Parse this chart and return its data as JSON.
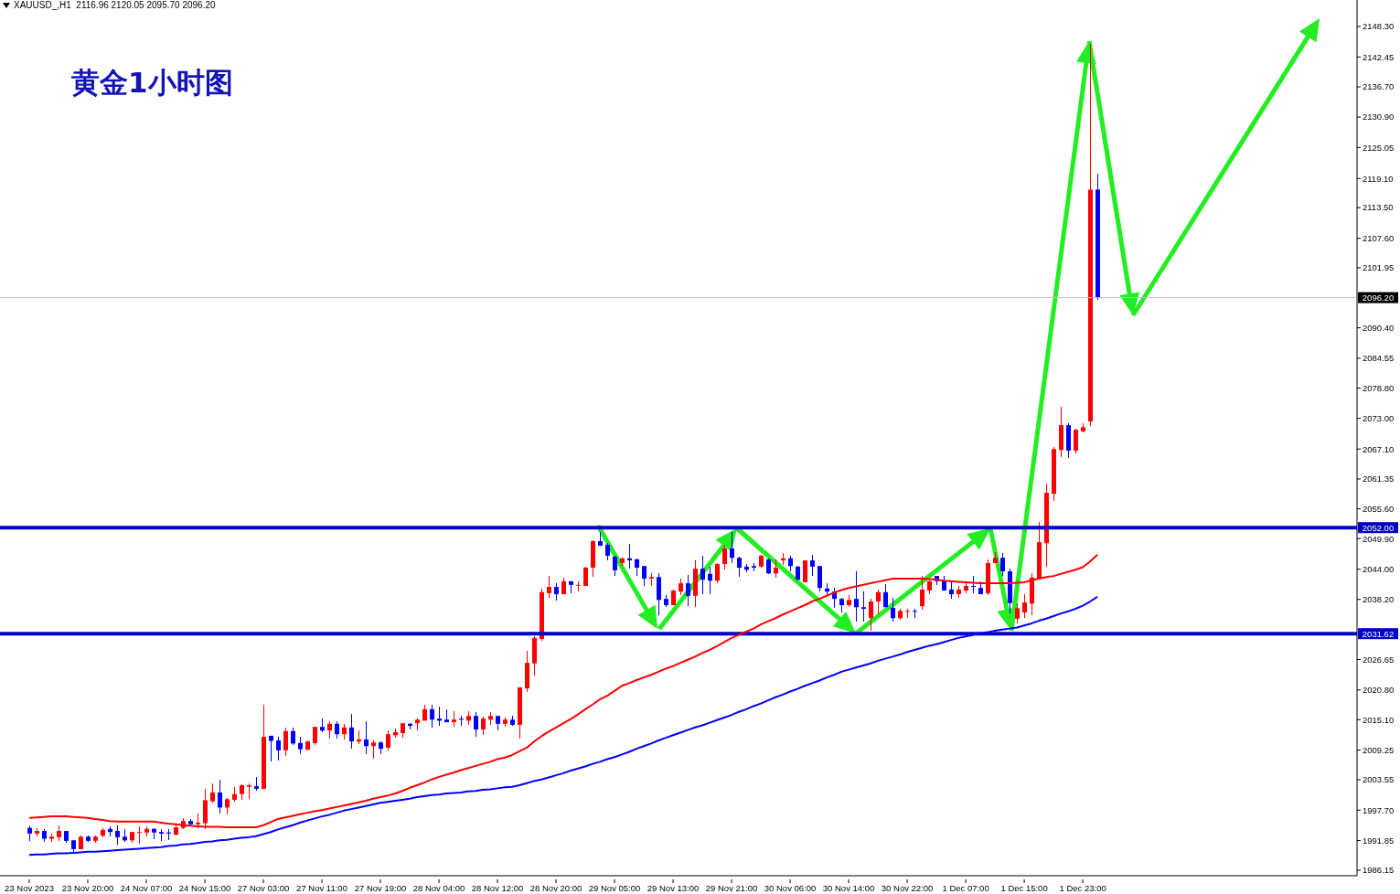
{
  "chart_data": {
    "type": "candlestick",
    "title": "黄金1小时图",
    "annotations": [
      "XAUUSD_,H1  2116.96 2120.05 2095.70 2096.20"
    ],
    "categories": [
      "23 Nov 2023",
      null,
      null,
      null,
      null,
      null,
      null,
      null,
      "23 Nov 20:00",
      null,
      null,
      null,
      null,
      null,
      null,
      null,
      "24 Nov 07:00",
      null,
      null,
      null,
      null,
      null,
      null,
      null,
      "24 Nov 15:00",
      null,
      null,
      null,
      null,
      null,
      null,
      null,
      "27 Nov 03:00",
      null,
      null,
      null,
      null,
      null,
      null,
      null,
      "27 Nov 11:00",
      null,
      null,
      null,
      null,
      null,
      null,
      null,
      "27 Nov 19:00",
      null,
      null,
      null,
      null,
      null,
      null,
      null,
      "28 Nov 04:00",
      null,
      null,
      null,
      null,
      null,
      null,
      null,
      "28 Nov 12:00",
      null,
      null,
      null,
      null,
      null,
      null,
      null,
      "28 Nov 20:00",
      null,
      null,
      null,
      null,
      null,
      null,
      null,
      "29 Nov 05:00",
      null,
      null,
      null,
      null,
      null,
      null,
      null,
      "29 Nov 13:00",
      null,
      null,
      null,
      null,
      null,
      null,
      null,
      "29 Nov 21:00",
      null,
      null,
      null,
      null,
      null,
      null,
      null,
      "30 Nov 06:00",
      null,
      null,
      null,
      null,
      null,
      null,
      null,
      "30 Nov 14:00",
      null,
      null,
      null,
      null,
      null,
      null,
      null,
      "30 Nov 22:00",
      null,
      null,
      null,
      null,
      null,
      null,
      null,
      "1 Dec 07:00",
      null,
      null,
      null,
      null,
      null,
      null,
      null,
      "1 Dec 15:00",
      null,
      null,
      null,
      null,
      null,
      null,
      null,
      "1 Dec 23:00",
      null,
      null
    ],
    "ohlc": [
      [
        1994.3,
        1994.7,
        1991.8,
        1993.2
      ],
      [
        1993.2,
        1994.3,
        1992.7,
        1993.7
      ],
      [
        1993.7,
        1994.1,
        1991.6,
        1992.2
      ],
      [
        1992.2,
        1993.1,
        1991.6,
        1992.6
      ],
      [
        1992.5,
        1994.8,
        1991.8,
        1993.7
      ],
      [
        1993.7,
        1993.7,
        1991.4,
        1991.8
      ],
      [
        1991.9,
        1991.9,
        1989.5,
        1990.2
      ],
      [
        1990.2,
        1992.8,
        1990.2,
        1992.6
      ],
      [
        1992.6,
        1992.9,
        1991.6,
        1991.8
      ],
      [
        1991.8,
        1992.9,
        1991.4,
        1992.6
      ],
      [
        1992.8,
        1994.3,
        1992.4,
        1993.9
      ],
      [
        1994.1,
        1994.6,
        1992.6,
        1993.5
      ],
      [
        1993.7,
        1994.8,
        1991.1,
        1992.5
      ],
      [
        1992.6,
        1994.0,
        1991.6,
        1991.9
      ],
      [
        1991.9,
        1993.5,
        1991.4,
        1993.5
      ],
      [
        1993.4,
        1994.6,
        1991.2,
        1993.5
      ],
      [
        1993.4,
        1994.5,
        1992.6,
        1994.1
      ],
      [
        1994.1,
        1994.3,
        1992.2,
        1993.4
      ],
      [
        1993.5,
        1994.0,
        1991.8,
        1993.2
      ],
      [
        1993.4,
        1994.0,
        1991.9,
        1993.2
      ],
      [
        1993.0,
        1994.7,
        1992.8,
        1994.4
      ],
      [
        1994.3,
        1996.2,
        1994.1,
        1995.6
      ],
      [
        1995.6,
        1996.0,
        1994.7,
        1995.0
      ],
      [
        1995.0,
        1997.1,
        1994.3,
        1995.3
      ],
      [
        1995.2,
        2001.8,
        1994.1,
        1999.6
      ],
      [
        1999.4,
        2002.8,
        1999.2,
        2001.1
      ],
      [
        2001.1,
        2003.5,
        1997.1,
        1998.2
      ],
      [
        1998.2,
        2000.1,
        1996.9,
        1999.8
      ],
      [
        1999.7,
        2002.1,
        1999.4,
        2000.8
      ],
      [
        2000.8,
        2002.7,
        1999.6,
        2002.5
      ],
      [
        2002.2,
        2002.9,
        1999.9,
        2002.5
      ],
      [
        2002.3,
        2004.1,
        2001.5,
        2001.8
      ],
      [
        2001.8,
        2018.0,
        2001.8,
        2011.8
      ],
      [
        2012.0,
        2012.0,
        2007.1,
        2011.0
      ],
      [
        2011.1,
        2011.8,
        2007.3,
        2009.2
      ],
      [
        2009.2,
        2013.6,
        2008.2,
        2012.9
      ],
      [
        2012.9,
        2013.6,
        2010.2,
        2010.5
      ],
      [
        2010.6,
        2011.8,
        2008.5,
        2009.4
      ],
      [
        2009.3,
        2011.1,
        2009.3,
        2010.9
      ],
      [
        2010.6,
        2013.7,
        2010.2,
        2013.7
      ],
      [
        2013.7,
        2015.4,
        2012.7,
        2013.0
      ],
      [
        2013.0,
        2014.8,
        2011.5,
        2014.3
      ],
      [
        2014.3,
        2014.8,
        2011.5,
        2012.3
      ],
      [
        2012.3,
        2014.3,
        2011.3,
        2013.6
      ],
      [
        2013.6,
        2016.2,
        2009.5,
        2010.9
      ],
      [
        2010.9,
        2013.0,
        2010.4,
        2011.3
      ],
      [
        2011.3,
        2014.8,
        2008.5,
        2010.0
      ],
      [
        2010.0,
        2011.1,
        2007.6,
        2010.7
      ],
      [
        2010.7,
        2010.9,
        2008.5,
        2009.5
      ],
      [
        2009.7,
        2013.0,
        2009.2,
        2012.3
      ],
      [
        2012.1,
        2013.4,
        2011.6,
        2012.7
      ],
      [
        2012.5,
        2014.4,
        2011.6,
        2014.4
      ],
      [
        2014.3,
        2014.4,
        2013.2,
        2013.9
      ],
      [
        2014.4,
        2015.3,
        2013.0,
        2015.1
      ],
      [
        2014.9,
        2017.9,
        2014.9,
        2017.1
      ],
      [
        2017.1,
        2017.9,
        2013.6,
        2015.1
      ],
      [
        2015.3,
        2017.6,
        2013.9,
        2014.9
      ],
      [
        2015.1,
        2017.1,
        2014.6,
        2014.6
      ],
      [
        2014.6,
        2016.7,
        2013.7,
        2015.1
      ],
      [
        2015.3,
        2015.8,
        2013.9,
        2015.1
      ],
      [
        2014.9,
        2016.7,
        2014.1,
        2015.8
      ],
      [
        2015.8,
        2016.5,
        2011.8,
        2013.2
      ],
      [
        2013.2,
        2015.7,
        2012.1,
        2015.3
      ],
      [
        2015.1,
        2016.5,
        2014.1,
        2015.8
      ],
      [
        2015.8,
        2015.8,
        2013.0,
        2014.3
      ],
      [
        2014.3,
        2015.5,
        2013.7,
        2015.1
      ],
      [
        2015.1,
        2015.8,
        2013.9,
        2014.1
      ],
      [
        2014.1,
        2021.3,
        2011.4,
        2021.3
      ],
      [
        2021.1,
        2028.3,
        2020.4,
        2026.0
      ],
      [
        2025.9,
        2031.1,
        2023.6,
        2030.8
      ],
      [
        2030.6,
        2040.3,
        2030.2,
        2039.6
      ],
      [
        2039.4,
        2042.7,
        2038.5,
        2040.6
      ],
      [
        2040.6,
        2041.3,
        2038.0,
        2039.2
      ],
      [
        2039.2,
        2042.4,
        2039.2,
        2041.7
      ],
      [
        2041.7,
        2041.7,
        2039.4,
        2041.0
      ],
      [
        2040.9,
        2041.7,
        2039.7,
        2041.0
      ],
      [
        2040.8,
        2044.5,
        2040.8,
        2044.3
      ],
      [
        2044.3,
        2049.6,
        2042.5,
        2049.4
      ],
      [
        2049.4,
        2051.1,
        2048.5,
        2048.5
      ],
      [
        2048.7,
        2049.0,
        2045.7,
        2046.6
      ],
      [
        2046.4,
        2046.6,
        2042.7,
        2043.8
      ],
      [
        2045.2,
        2046.2,
        2044.6,
        2046.1
      ],
      [
        2046.1,
        2048.9,
        2044.1,
        2045.7
      ],
      [
        2045.9,
        2046.1,
        2042.7,
        2044.3
      ],
      [
        2044.6,
        2044.6,
        2040.8,
        2042.2
      ],
      [
        2042.2,
        2043.2,
        2040.8,
        2042.5
      ],
      [
        2042.5,
        2043.2,
        2035.2,
        2038.1
      ],
      [
        2038.3,
        2039.0,
        2036.7,
        2037.1
      ],
      [
        2037.1,
        2040.1,
        2037.1,
        2039.9
      ],
      [
        2039.7,
        2042.2,
        2039.0,
        2041.3
      ],
      [
        2041.3,
        2042.9,
        2036.9,
        2038.9
      ],
      [
        2038.9,
        2045.7,
        2036.7,
        2044.1
      ],
      [
        2044.1,
        2046.6,
        2039.2,
        2042.0
      ],
      [
        2043.1,
        2044.5,
        2039.2,
        2041.8
      ],
      [
        2041.8,
        2045.2,
        2041.3,
        2045.0
      ],
      [
        2045.0,
        2048.7,
        2043.9,
        2048.0
      ],
      [
        2048.0,
        2051.1,
        2045.2,
        2046.2
      ],
      [
        2046.2,
        2046.4,
        2042.5,
        2044.3
      ],
      [
        2044.5,
        2045.0,
        2043.4,
        2043.9
      ],
      [
        2044.6,
        2045.2,
        2043.6,
        2044.3
      ],
      [
        2044.5,
        2046.8,
        2044.3,
        2046.6
      ],
      [
        2045.9,
        2046.1,
        2043.1,
        2043.2
      ],
      [
        2043.2,
        2045.9,
        2042.4,
        2044.3
      ],
      [
        2045.7,
        2047.1,
        2044.8,
        2046.1
      ],
      [
        2046.1,
        2046.6,
        2043.6,
        2044.6
      ],
      [
        2044.5,
        2044.6,
        2041.8,
        2042.0
      ],
      [
        2041.5,
        2045.7,
        2041.5,
        2045.7
      ],
      [
        2045.7,
        2046.8,
        2042.7,
        2044.5
      ],
      [
        2044.6,
        2044.6,
        2039.7,
        2040.4
      ],
      [
        2040.3,
        2041.3,
        2038.9,
        2039.7
      ],
      [
        2039.7,
        2040.4,
        2036.6,
        2038.3
      ],
      [
        2038.3,
        2038.5,
        2035.7,
        2037.1
      ],
      [
        2037.1,
        2039.0,
        2036.7,
        2038.1
      ],
      [
        2038.3,
        2043.6,
        2033.9,
        2036.7
      ],
      [
        2036.7,
        2039.7,
        2033.9,
        2036.4
      ],
      [
        2034.6,
        2038.3,
        2032.2,
        2037.8
      ],
      [
        2037.8,
        2040.1,
        2035.3,
        2039.6
      ],
      [
        2039.6,
        2041.1,
        2036.7,
        2036.7
      ],
      [
        2036.6,
        2038.5,
        2033.9,
        2034.6
      ],
      [
        2034.6,
        2036.4,
        2034.3,
        2036.0
      ],
      [
        2035.9,
        2036.4,
        2034.6,
        2036.0
      ],
      [
        2036.0,
        2036.4,
        2034.6,
        2035.9
      ],
      [
        2036.9,
        2042.7,
        2036.3,
        2040.1
      ],
      [
        2039.9,
        2041.8,
        2039.2,
        2041.7
      ],
      [
        2042.7,
        2042.7,
        2041.0,
        2041.7
      ],
      [
        2041.7,
        2042.7,
        2039.9,
        2039.9
      ],
      [
        2040.1,
        2041.7,
        2038.3,
        2039.2
      ],
      [
        2039.2,
        2040.8,
        2038.5,
        2040.1
      ],
      [
        2039.9,
        2041.7,
        2039.4,
        2040.8
      ],
      [
        2040.8,
        2042.7,
        2039.4,
        2040.6
      ],
      [
        2040.4,
        2041.7,
        2039.2,
        2039.2
      ],
      [
        2039.4,
        2045.9,
        2039.0,
        2045.2
      ],
      [
        2045.2,
        2047.3,
        2045.1,
        2046.2
      ],
      [
        2046.2,
        2047.1,
        2042.7,
        2043.6
      ],
      [
        2043.6,
        2044.2,
        2035.5,
        2037.5
      ],
      [
        2034.5,
        2037.5,
        2033.5,
        2036.5
      ],
      [
        2035.7,
        2039.2,
        2034.7,
        2037.6
      ],
      [
        2037.4,
        2043.3,
        2035.1,
        2042.4
      ],
      [
        2042.1,
        2053.1,
        2042.1,
        2049.2
      ],
      [
        2049.0,
        2060.5,
        2044.5,
        2058.7
      ],
      [
        2058.5,
        2067.5,
        2057.1,
        2067.1
      ],
      [
        2066.9,
        2075.2,
        2065.5,
        2071.7
      ],
      [
        2071.7,
        2072.1,
        2065.4,
        2066.8
      ],
      [
        2066.8,
        2071.0,
        2066.3,
        2070.8
      ],
      [
        2070.5,
        2072.1,
        2070.3,
        2071.3
      ],
      [
        2072.4,
        2145.0,
        2071.5,
        2116.96
      ],
      [
        2116.96,
        2120.05,
        2095.7,
        2096.2
      ]
    ],
    "colors": [
      "#0000ff",
      "#ff0000",
      "#0000ff",
      "#ff0000",
      "#ff0000",
      "#0000ff",
      "#0000ff",
      "#ff0000",
      "#0000ff",
      "#ff0000",
      "#ff0000",
      "#0000ff",
      "#0000ff",
      "#0000ff",
      "#ff0000",
      "#ff0000",
      "#ff0000",
      "#0000ff",
      "#0000ff",
      "#0000ff",
      "#ff0000",
      "#ff0000",
      "#0000ff",
      "#ff0000",
      "#ff0000",
      "#ff0000",
      "#0000ff",
      "#ff0000",
      "#ff0000",
      "#ff0000",
      "#ff0000",
      "#0000ff",
      "#ff0000",
      "#0000ff",
      "#0000ff",
      "#ff0000",
      "#0000ff",
      "#0000ff",
      "#ff0000",
      "#ff0000",
      "#0000ff",
      "#ff0000",
      "#0000ff",
      "#ff0000",
      "#0000ff",
      "#ff0000",
      "#0000ff",
      "#ff0000",
      "#0000ff",
      "#ff0000",
      "#ff0000",
      "#ff0000",
      "#0000ff",
      "#ff0000",
      "#ff0000",
      "#0000ff",
      "#0000ff",
      "#0000ff",
      "#ff0000",
      "#0000ff",
      "#ff0000",
      "#0000ff",
      "#ff0000",
      "#ff0000",
      "#0000ff",
      "#ff0000",
      "#0000ff",
      "#ff0000",
      "#ff0000",
      "#ff0000",
      "#ff0000",
      "#ff0000",
      "#0000ff",
      "#ff0000",
      "#0000ff",
      "#ff0000",
      "#ff0000",
      "#ff0000",
      "#0000ff",
      "#0000ff",
      "#0000ff",
      "#ff0000",
      "#0000ff",
      "#0000ff",
      "#0000ff",
      "#ff0000",
      "#0000ff",
      "#0000ff",
      "#ff0000",
      "#ff0000",
      "#0000ff",
      "#ff0000",
      "#0000ff",
      "#0000ff",
      "#ff0000",
      "#ff0000",
      "#0000ff",
      "#0000ff",
      "#0000ff",
      "#0000ff",
      "#ff0000",
      "#0000ff",
      "#ff0000",
      "#ff0000",
      "#0000ff",
      "#0000ff",
      "#ff0000",
      "#0000ff",
      "#0000ff",
      "#0000ff",
      "#0000ff",
      "#0000ff",
      "#ff0000",
      "#0000ff",
      "#0000ff",
      "#ff0000",
      "#ff0000",
      "#0000ff",
      "#0000ff",
      "#ff0000",
      "#ff0000",
      "#0000ff",
      "#ff0000",
      "#ff0000",
      "#0000ff",
      "#0000ff",
      "#0000ff",
      "#ff0000",
      "#ff0000",
      "#0000ff",
      "#0000ff",
      "#ff0000",
      "#ff0000",
      "#0000ff",
      "#0000ff",
      "#ff0000",
      "#ff0000",
      "#ff0000",
      "#ff0000",
      "#ff0000",
      "#ff0000",
      "#ff0000",
      "#0000ff",
      "#ff0000",
      "#ff0000",
      "#ff0000",
      "#0000ff"
    ],
    "series": [
      {
        "type": "line",
        "color": "#ff0000",
        "values": [
          1996.2,
          1996.3,
          1996.4,
          1996.5,
          1996.5,
          1996.5,
          1996.4,
          1996.3,
          1996.2,
          1996.0,
          1995.8,
          1995.6,
          1995.5,
          1995.5,
          1995.5,
          1995.5,
          1995.5,
          1995.5,
          1995.3,
          1995.1,
          1995.0,
          1994.8,
          1994.7,
          1994.6,
          1994.5,
          1994.5,
          1994.5,
          1994.4,
          1994.4,
          1994.4,
          1994.4,
          1994.4,
          1994.8,
          1995.4,
          1996.0,
          1996.3,
          1996.6,
          1996.9,
          1997.2,
          1997.5,
          1997.7,
          1998.0,
          1998.3,
          1998.6,
          1998.9,
          1999.2,
          1999.5,
          1999.9,
          2000.2,
          2000.5,
          2000.9,
          2001.4,
          2002.0,
          2002.5,
          2003.0,
          2003.6,
          2004.1,
          2004.5,
          2004.9,
          2005.4,
          2005.8,
          2006.2,
          2006.6,
          2007.0,
          2007.5,
          2007.8,
          2008.3,
          2009.0,
          2009.7,
          2010.9,
          2011.9,
          2012.8,
          2013.6,
          2014.4,
          2015.2,
          2016.1,
          2017.1,
          2018.0,
          2019.0,
          2019.7,
          2020.6,
          2021.6,
          2022.1,
          2022.7,
          2023.2,
          2023.7,
          2024.3,
          2024.9,
          2025.4,
          2026.0,
          2026.6,
          2027.2,
          2027.9,
          2028.5,
          2029.2,
          2030.0,
          2030.8,
          2031.4,
          2032.0,
          2032.6,
          2033.4,
          2034.0,
          2034.6,
          2035.3,
          2035.9,
          2036.5,
          2037.1,
          2037.8,
          2038.3,
          2038.9,
          2039.5,
          2040.0,
          2040.4,
          2040.7,
          2041.0,
          2041.3,
          2041.6,
          2041.9,
          2042.2,
          2042.2,
          2042.2,
          2042.2,
          2042.2,
          2042.1,
          2042.0,
          2041.8,
          2041.7,
          2041.6,
          2041.5,
          2041.4,
          2041.3,
          2041.3,
          2041.3,
          2041.3,
          2041.3,
          2041.4,
          2041.5,
          2041.9,
          2042.2,
          2042.5,
          2042.7,
          2043.1,
          2043.5,
          2043.9,
          2044.4,
          2045.5,
          2046.8
        ]
      },
      {
        "type": "line",
        "color": "#0000ff",
        "values": [
          1989.1,
          1989.2,
          1989.2,
          1989.3,
          1989.4,
          1989.4,
          1989.5,
          1989.6,
          1989.7,
          1989.7,
          1989.8,
          1989.9,
          1990.0,
          1990.1,
          1990.2,
          1990.3,
          1990.4,
          1990.5,
          1990.6,
          1990.8,
          1990.9,
          1991.1,
          1991.2,
          1991.4,
          1991.6,
          1991.7,
          1991.9,
          1992.0,
          1992.2,
          1992.4,
          1992.5,
          1992.7,
          1993.1,
          1993.5,
          1994.0,
          1994.4,
          1994.8,
          1995.3,
          1995.7,
          1996.1,
          1996.5,
          1996.8,
          1997.2,
          1997.6,
          1997.9,
          1998.2,
          1998.5,
          1998.8,
          1999.1,
          1999.3,
          1999.5,
          1999.7,
          1999.9,
          2000.2,
          2000.4,
          2000.6,
          2000.7,
          2000.9,
          2001.0,
          2001.1,
          2001.3,
          2001.4,
          2001.6,
          2001.7,
          2001.9,
          2002.1,
          2002.2,
          2002.5,
          2002.9,
          2003.3,
          2003.6,
          2004.0,
          2004.4,
          2004.8,
          2005.3,
          2005.7,
          2006.1,
          2006.6,
          2007.0,
          2007.5,
          2007.9,
          2008.4,
          2008.9,
          2009.5,
          2010.0,
          2010.5,
          2011.1,
          2011.6,
          2012.1,
          2012.6,
          2013.1,
          2013.6,
          2014.0,
          2014.5,
          2015.0,
          2015.5,
          2016.0,
          2016.6,
          2017.1,
          2017.7,
          2018.2,
          2018.8,
          2019.4,
          2019.9,
          2020.5,
          2021.0,
          2021.6,
          2022.1,
          2022.6,
          2023.2,
          2023.7,
          2024.3,
          2024.7,
          2025.1,
          2025.5,
          2025.9,
          2026.4,
          2026.8,
          2027.2,
          2027.6,
          2028.1,
          2028.5,
          2028.9,
          2029.3,
          2029.6,
          2030.0,
          2030.4,
          2030.8,
          2031.1,
          2031.4,
          2031.7,
          2031.9,
          2032.2,
          2032.4,
          2032.6,
          2032.8,
          2033.2,
          2033.6,
          2034.1,
          2034.5,
          2035.0,
          2035.5,
          2035.9,
          2036.4,
          2037.0,
          2037.8,
          2038.7
        ]
      }
    ],
    "ylim": [
      1985.1,
      2153.4
    ],
    "yticks": [
      {
        "value": 2148.3,
        "label": "2148.30"
      },
      {
        "value": 2142.45,
        "label": "2142.45"
      },
      {
        "value": 2136.7,
        "label": "2136.70"
      },
      {
        "value": 2130.9,
        "label": "2130.90"
      },
      {
        "value": 2125.05,
        "label": "2125.05"
      },
      {
        "value": 2119.1,
        "label": "2119.10"
      },
      {
        "value": 2113.5,
        "label": "2113.50"
      },
      {
        "value": 2107.6,
        "label": "2107.60"
      },
      {
        "value": 2101.95,
        "label": "2101.95"
      },
      {
        "value": 2090.4,
        "label": "2090.40"
      },
      {
        "value": 2084.55,
        "label": "2084.55"
      },
      {
        "value": 2078.8,
        "label": "2078.80"
      },
      {
        "value": 2073,
        "label": "2073.00"
      },
      {
        "value": 2067.1,
        "label": "2067.10"
      },
      {
        "value": 2061.35,
        "label": "2061.35"
      },
      {
        "value": 2055.6,
        "label": "2055.60"
      },
      {
        "value": 2049.9,
        "label": "2049.90"
      },
      {
        "value": 2044,
        "label": "2044.00"
      },
      {
        "value": 2038.2,
        "label": "2038.20"
      },
      {
        "value": 2026.65,
        "label": "2026.65"
      },
      {
        "value": 2020.8,
        "label": "2020.80"
      },
      {
        "value": 2015.1,
        "label": "2015.10"
      },
      {
        "value": 2009.25,
        "label": "2009.25"
      },
      {
        "value": 2003.55,
        "label": "2003.55"
      },
      {
        "value": 1997.7,
        "label": "1997.70"
      },
      {
        "value": 1991.85,
        "label": "1991.85"
      },
      {
        "value": 1986.15,
        "label": "1986.15"
      }
    ],
    "ref_lines": [
      {
        "axis": "y",
        "value": 2096.2,
        "label": "2096.20",
        "color": "#c0c0c0"
      },
      {
        "axis": "y",
        "value": 2052.0,
        "label": "2052.00",
        "color": "#0000c8"
      },
      {
        "axis": "y",
        "value": 2031.62,
        "label": "2031.62",
        "color": "#0000c8"
      }
    ]
  }
}
